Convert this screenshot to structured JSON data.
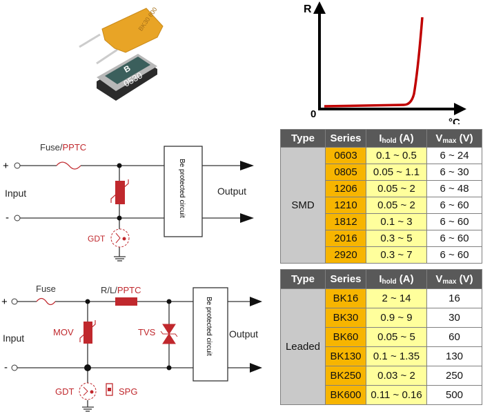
{
  "products": {
    "leaded_marking": "BK30 600",
    "smd_marking": "0530",
    "smd_logo": "B"
  },
  "rt_graph": {
    "y_label": "R",
    "x_label": "°C",
    "origin_label": "0",
    "curve_color": "#c00000"
  },
  "circuit1": {
    "plus": "+",
    "minus": "-",
    "fuse_label": "Fuse/",
    "pptc_label": "PPTC",
    "input_label": "Input",
    "output_label": "Output",
    "box_label": "Be protected circuit",
    "gdt_label": "GDT"
  },
  "circuit2": {
    "plus": "+",
    "minus": "-",
    "fuse_label": "Fuse",
    "rl_label": "R/L/",
    "pptc_label": "PPTC",
    "mov_label": "MOV",
    "tvs_label": "TVS",
    "input_label": "Input",
    "output_label": "Output",
    "box_label": "Be protected circuit",
    "gdt_label": "GDT",
    "spg_label": "SPG"
  },
  "colors": {
    "accent_red": "#c0282d",
    "header": "#595959",
    "series": "#f7b500",
    "ihold": "#ffff9c",
    "type": "#c9c9c9"
  },
  "headers": {
    "type": "Type",
    "series": "Series",
    "ihold_main": "I",
    "ihold_sub": "hold",
    "ihold_unit": " (A)",
    "vmax_main": "V",
    "vmax_sub": "max",
    "vmax_unit": " (V)"
  },
  "smd_table": {
    "type": "SMD",
    "rows": [
      {
        "series": "0603",
        "ihold": "0.1 ~ 0.5",
        "vmax": "6 ~ 24"
      },
      {
        "series": "0805",
        "ihold": "0.05 ~ 1.1",
        "vmax": "6 ~ 30"
      },
      {
        "series": "1206",
        "ihold": "0.05 ~ 2",
        "vmax": "6 ~ 48"
      },
      {
        "series": "1210",
        "ihold": "0.05 ~ 2",
        "vmax": "6 ~ 60"
      },
      {
        "series": "1812",
        "ihold": "0.1 ~ 3",
        "vmax": "6 ~ 60"
      },
      {
        "series": "2016",
        "ihold": "0.3 ~ 5",
        "vmax": "6 ~ 60"
      },
      {
        "series": "2920",
        "ihold": "0.3 ~ 7",
        "vmax": "6 ~ 60"
      }
    ]
  },
  "leaded_table": {
    "type": "Leaded",
    "rows": [
      {
        "series": "BK16",
        "ihold": "2 ~ 14",
        "vmax": "16"
      },
      {
        "series": "BK30",
        "ihold": "0.9 ~ 9",
        "vmax": "30"
      },
      {
        "series": "BK60",
        "ihold": "0.05 ~ 5",
        "vmax": "60"
      },
      {
        "series": "BK130",
        "ihold": "0.1 ~ 1.35",
        "vmax": "130"
      },
      {
        "series": "BK250",
        "ihold": "0.03 ~ 2",
        "vmax": "250"
      },
      {
        "series": "BK600",
        "ihold": "0.11 ~ 0.16",
        "vmax": "500"
      }
    ]
  }
}
